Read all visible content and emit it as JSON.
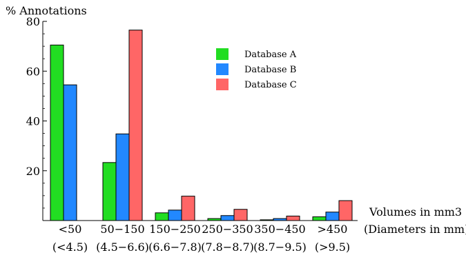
{
  "chart_data": {
    "type": "bar",
    "ylabel": "% Annotations",
    "xlabel_line1": "Volumes in mm3",
    "xlabel_line2": "(Diameters in mm)",
    "ylim": [
      0,
      80
    ],
    "yticks": [
      0,
      20,
      40,
      60,
      80
    ],
    "grid": false,
    "legend_position": "top-center",
    "categories": [
      "<50",
      "50−150",
      "150−250",
      "250−350",
      "350−450",
      ">450"
    ],
    "sub_categories": [
      "(<4.5)",
      "(4.5−6.6)",
      "(6.6−7.8)",
      "(7.8−8.7)",
      "(8.7−9.5)",
      "(>9.5)"
    ],
    "series": [
      {
        "name": "Database A",
        "color": "#22dd22",
        "values": [
          70.5,
          23.3,
          3.1,
          0.8,
          0.3,
          1.5
        ]
      },
      {
        "name": "Database B",
        "color": "#2288ff",
        "values": [
          54.5,
          34.8,
          4.2,
          2.0,
          0.8,
          3.4
        ]
      },
      {
        "name": "Database C",
        "color": "#ff6666",
        "values": [
          0,
          76.5,
          9.8,
          4.5,
          1.8,
          8.0
        ]
      }
    ]
  }
}
